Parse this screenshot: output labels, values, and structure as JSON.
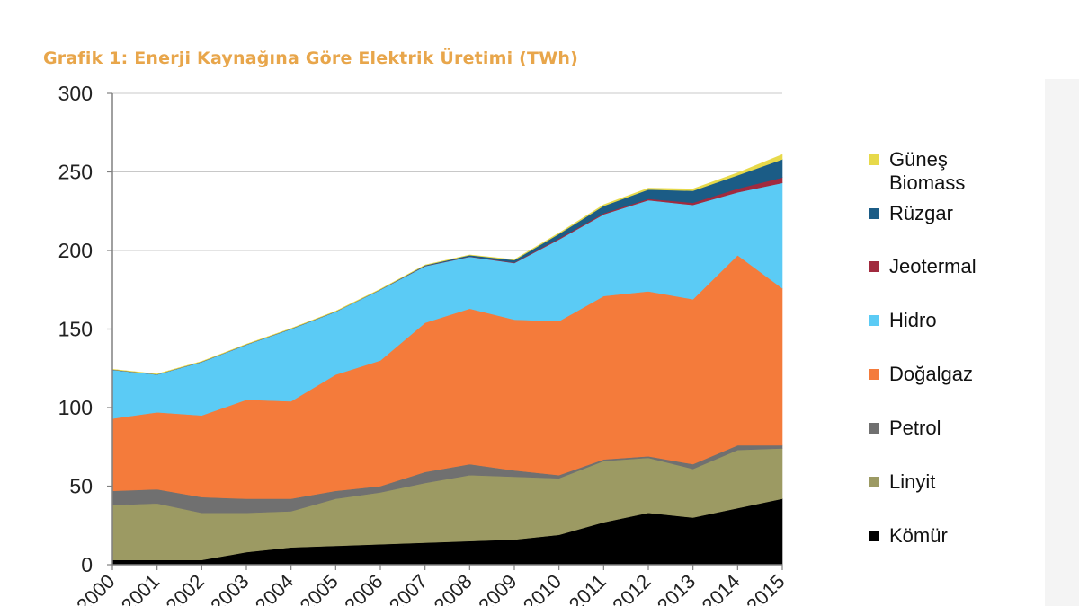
{
  "chart_data": {
    "type": "area",
    "stacked": true,
    "title": "Grafik 1: Enerji Kaynağına Göre Elektrik Üretimi (TWh)",
    "x": [
      "2000",
      "2001",
      "2002",
      "2003",
      "2004",
      "2005",
      "2006",
      "2007",
      "2008",
      "2009",
      "2010",
      "2011",
      "2012",
      "2013",
      "2014",
      "2015"
    ],
    "ylim": [
      0,
      300
    ],
    "yticks": [
      0,
      50,
      100,
      150,
      200,
      250,
      300
    ],
    "grid": "horizontal",
    "legend_position": "right",
    "series": [
      {
        "name": "Kömür",
        "color": "#000000",
        "values": [
          3,
          3,
          3,
          8,
          11,
          12,
          13,
          14,
          15,
          16,
          19,
          27,
          33,
          30,
          36,
          42
        ]
      },
      {
        "name": "Linyit",
        "color": "#9c9a63",
        "values": [
          35,
          36,
          30,
          25,
          23,
          30,
          33,
          38,
          42,
          40,
          36,
          39,
          35,
          31,
          37,
          32
        ]
      },
      {
        "name": "Petrol",
        "color": "#707070",
        "values": [
          9,
          9,
          10,
          9,
          8,
          5,
          4,
          7,
          7,
          4,
          2,
          1,
          1,
          3,
          3,
          2
        ]
      },
      {
        "name": "Doğalgaz",
        "color": "#f47b3b",
        "values": [
          46,
          49,
          52,
          63,
          62,
          74,
          80,
          95,
          99,
          96,
          98,
          104,
          105,
          105,
          121,
          100
        ]
      },
      {
        "name": "Hidro",
        "color": "#5bcbf5",
        "values": [
          31,
          24,
          34,
          35,
          46,
          40,
          45,
          36,
          33,
          36,
          52,
          52,
          58,
          60,
          40,
          67
        ]
      },
      {
        "name": "Jeotermal",
        "color": "#a12a3e",
        "values": [
          0.1,
          0.1,
          0.1,
          0.1,
          0.1,
          0.1,
          0.1,
          0.2,
          0.2,
          0.4,
          0.7,
          0.7,
          0.9,
          1.4,
          2.4,
          3.4
        ]
      },
      {
        "name": "Rüzgar",
        "color": "#1b5c86",
        "values": [
          0.1,
          0.1,
          0.1,
          0.1,
          0.1,
          0.1,
          0.1,
          0.4,
          0.8,
          1.5,
          2.9,
          4.7,
          5.9,
          7.6,
          8.5,
          11.6
        ]
      },
      {
        "name": "Güneş\nBiomass",
        "color": "#e7d94a",
        "values": [
          0.2,
          0.2,
          0.2,
          0.2,
          0.2,
          0.2,
          0.2,
          0.2,
          0.2,
          0.3,
          0.5,
          0.7,
          0.9,
          1.2,
          1.5,
          3.0
        ]
      }
    ]
  }
}
